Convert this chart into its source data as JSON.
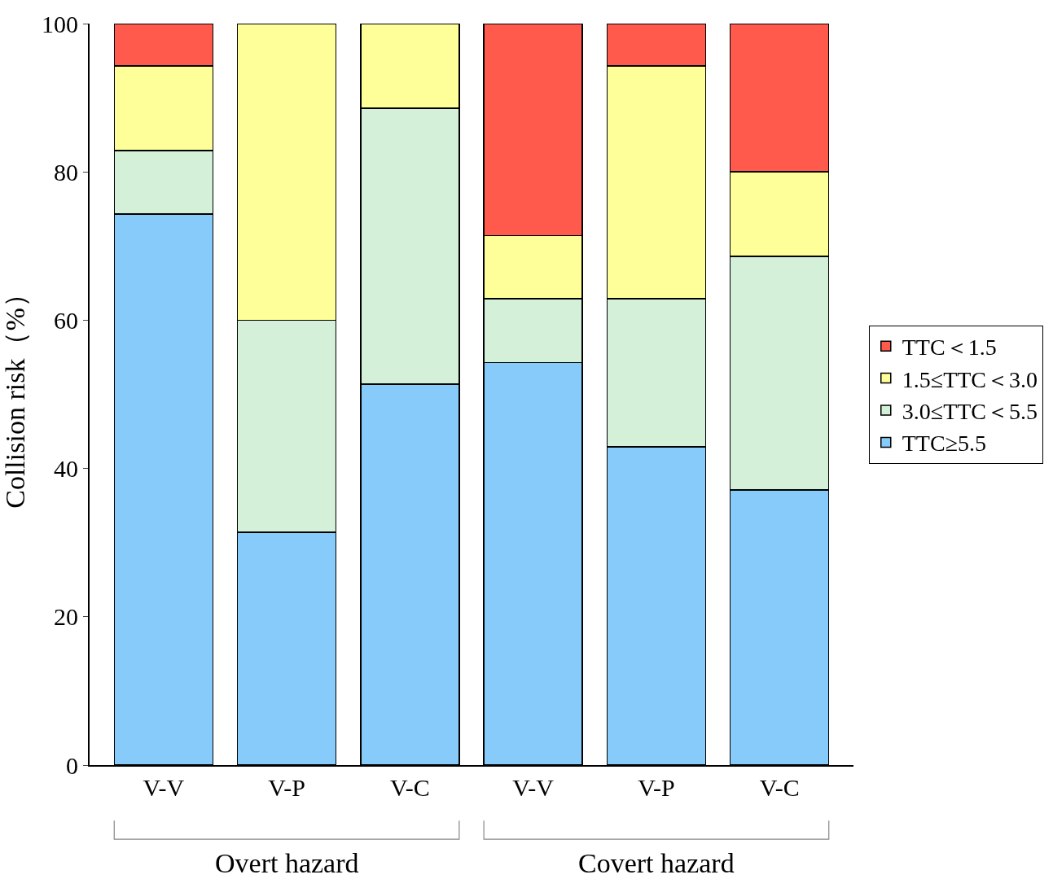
{
  "chart_data": {
    "type": "bar",
    "stacked": true,
    "ylabel": "Collision risk（%）",
    "categories": [
      "V-V",
      "V-P",
      "V-C",
      "V-V",
      "V-P",
      "V-C"
    ],
    "series": [
      {
        "name": "TTC≥5.5",
        "color": "#87cbfb",
        "values": [
          74.3,
          31.4,
          51.4,
          54.3,
          42.9,
          37.1
        ]
      },
      {
        "name": "3.0≤TTC＜5.5",
        "color": "#d4f0d8",
        "values": [
          8.6,
          28.6,
          37.2,
          8.6,
          20.0,
          31.5
        ]
      },
      {
        "name": "1.5≤TTC＜3.0",
        "color": "#ffff99",
        "values": [
          11.4,
          40.0,
          11.4,
          8.5,
          31.4,
          11.4
        ]
      },
      {
        "name": "TTC＜1.5",
        "color": "#ff5a4b",
        "values": [
          5.7,
          null,
          null,
          28.6,
          5.7,
          20.0
        ]
      }
    ],
    "ylim": [
      0,
      100
    ],
    "yticks": [
      0,
      20,
      40,
      60,
      80,
      100
    ],
    "legend": "right",
    "annotations": [
      "Overt hazard",
      "Covert hazard"
    ]
  }
}
